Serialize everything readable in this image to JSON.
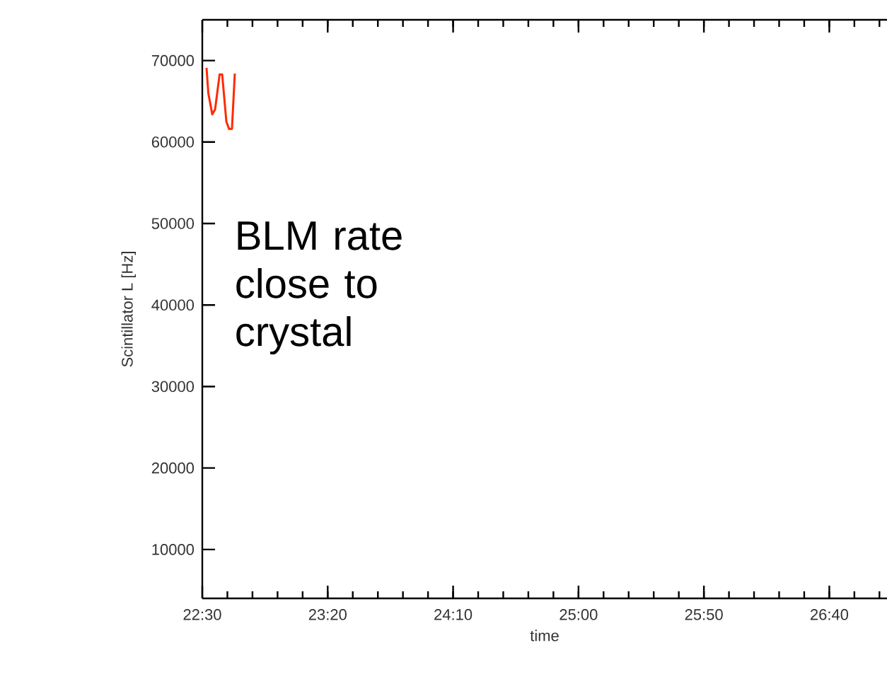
{
  "chart_data": {
    "type": "line",
    "xlabel": "time",
    "ylabel": "Scintillator L [Hz]",
    "annotations": [
      "BLM rate close to crystal"
    ],
    "x": [
      22.528,
      22.54,
      22.566,
      22.585,
      22.615,
      22.632,
      22.66,
      22.678,
      22.697,
      22.716
    ],
    "series": [
      {
        "color": "#ff2a00",
        "values": [
          69100,
          66000,
          63400,
          64000,
          68300,
          68300,
          62500,
          61600,
          61600,
          68400
        ]
      }
    ],
    "xlim": [
      22.5,
      27.05
    ],
    "ylim": [
      4000,
      75000
    ],
    "xticks": [
      {
        "value": 22.5,
        "label": "22:30"
      },
      {
        "value": 23.3333,
        "label": "23:20"
      },
      {
        "value": 24.1667,
        "label": "24:10"
      },
      {
        "value": 25.0,
        "label": "25:00"
      },
      {
        "value": 25.8333,
        "label": "25:50"
      },
      {
        "value": 26.6667,
        "label": "26:40"
      }
    ],
    "yticks": [
      10000,
      20000,
      30000,
      40000,
      50000,
      60000,
      70000
    ],
    "grid": false,
    "marker": "none",
    "line_style": "solid"
  }
}
